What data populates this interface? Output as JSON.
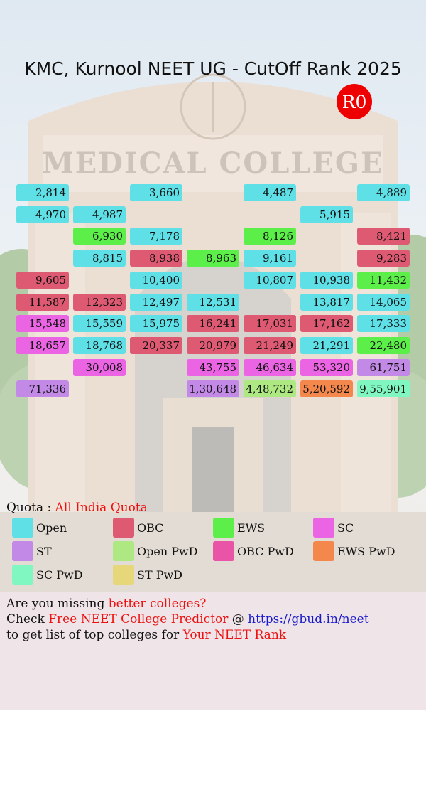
{
  "header": {
    "title": "KMC, Kurnool NEET UG - CutOff Rank 2025",
    "round": "R0"
  },
  "quota": {
    "label": "Quota :",
    "value": "All India Quota"
  },
  "colors": {
    "Open": "#5fdfe6",
    "OBC": "#de5a72",
    "EWS": "#5cef4a",
    "SC": "#ea64e3",
    "ST": "#c389e6",
    "Open PwD": "#aee883",
    "OBC PwD": "#ea54a6",
    "EWS PwD": "#f4874c",
    "SC PwD": "#80f7c0",
    "ST PwD": "#e6d77a"
  },
  "legend": [
    "Open",
    "OBC",
    "EWS",
    "SC",
    "ST",
    "Open PwD",
    "OBC PwD",
    "EWS PwD",
    "SC PwD",
    "ST PwD"
  ],
  "chart_data": {
    "type": "table",
    "title": "KMC, Kurnool NEET UG - CutOff Rank 2025",
    "columns": 7,
    "rows": [
      [
        {
          "v": "2,814",
          "c": "Open"
        },
        null,
        {
          "v": "3,660",
          "c": "Open"
        },
        null,
        {
          "v": "4,487",
          "c": "Open"
        },
        null,
        {
          "v": "4,889",
          "c": "Open"
        }
      ],
      [
        {
          "v": "4,970",
          "c": "Open"
        },
        {
          "v": "4,987",
          "c": "Open"
        },
        null,
        null,
        null,
        {
          "v": "5,915",
          "c": "Open"
        },
        null
      ],
      [
        null,
        {
          "v": "6,930",
          "c": "EWS"
        },
        {
          "v": "7,178",
          "c": "Open"
        },
        null,
        {
          "v": "8,126",
          "c": "EWS"
        },
        null,
        {
          "v": "8,421",
          "c": "OBC"
        }
      ],
      [
        null,
        {
          "v": "8,815",
          "c": "Open"
        },
        {
          "v": "8,938",
          "c": "OBC"
        },
        {
          "v": "8,963",
          "c": "EWS"
        },
        {
          "v": "9,161",
          "c": "Open"
        },
        null,
        {
          "v": "9,283",
          "c": "OBC"
        }
      ],
      [
        {
          "v": "9,605",
          "c": "OBC"
        },
        null,
        {
          "v": "10,400",
          "c": "Open"
        },
        null,
        {
          "v": "10,807",
          "c": "Open"
        },
        {
          "v": "10,938",
          "c": "Open"
        },
        {
          "v": "11,432",
          "c": "EWS"
        }
      ],
      [
        {
          "v": "11,587",
          "c": "OBC"
        },
        {
          "v": "12,323",
          "c": "OBC"
        },
        {
          "v": "12,497",
          "c": "Open"
        },
        {
          "v": "12,531",
          "c": "Open"
        },
        null,
        {
          "v": "13,817",
          "c": "Open"
        },
        {
          "v": "14,065",
          "c": "Open"
        }
      ],
      [
        {
          "v": "15,548",
          "c": "SC"
        },
        {
          "v": "15,559",
          "c": "Open"
        },
        {
          "v": "15,975",
          "c": "Open"
        },
        {
          "v": "16,241",
          "c": "OBC"
        },
        {
          "v": "17,031",
          "c": "OBC"
        },
        {
          "v": "17,162",
          "c": "OBC"
        },
        {
          "v": "17,333",
          "c": "Open"
        }
      ],
      [
        {
          "v": "18,657",
          "c": "SC"
        },
        {
          "v": "18,768",
          "c": "Open"
        },
        {
          "v": "20,337",
          "c": "OBC"
        },
        {
          "v": "20,979",
          "c": "OBC"
        },
        {
          "v": "21,249",
          "c": "OBC"
        },
        {
          "v": "21,291",
          "c": "Open"
        },
        {
          "v": "22,480",
          "c": "EWS"
        }
      ],
      [
        null,
        {
          "v": "30,008",
          "c": "SC"
        },
        null,
        {
          "v": "43,755",
          "c": "SC"
        },
        {
          "v": "46,634",
          "c": "SC"
        },
        {
          "v": "53,320",
          "c": "SC"
        },
        {
          "v": "61,751",
          "c": "ST"
        }
      ],
      [
        {
          "v": "71,336",
          "c": "ST"
        },
        null,
        null,
        {
          "v": "1,30,648",
          "c": "ST"
        },
        {
          "v": "4,48,732",
          "c": "Open PwD"
        },
        {
          "v": "5,20,592",
          "c": "EWS PwD"
        },
        {
          "v": "9,55,901",
          "c": "SC PwD"
        }
      ]
    ]
  },
  "promo": {
    "line1_a": "Are you missing ",
    "line1_b": "better colleges?",
    "line2_a": "Check ",
    "line2_b": "Free NEET College Predictor",
    "line2_c": " @ ",
    "line2_d": "https://gbud.in/neet",
    "line3_a": "to get list of top colleges for ",
    "line3_b": "Your NEET Rank"
  }
}
